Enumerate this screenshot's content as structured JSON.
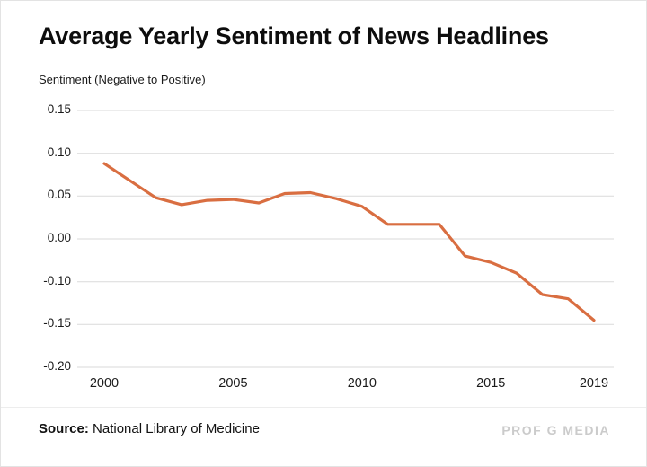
{
  "page": {
    "title": "Average Yearly Sentiment of News Headlines",
    "source_label": "Source:",
    "source_text": " National Library of Medicine",
    "brand": "PROF G MEDIA"
  },
  "chart_data": {
    "type": "line",
    "title": "Average Yearly Sentiment of News Headlines",
    "xlabel": "",
    "ylabel": "Sentiment (Negative to Positive)",
    "grid": true,
    "legend": "none",
    "line_color": "#D96E41",
    "x": [
      2000,
      2001,
      2002,
      2003,
      2004,
      2005,
      2006,
      2007,
      2008,
      2009,
      2010,
      2011,
      2012,
      2013,
      2014,
      2015,
      2016,
      2017,
      2018,
      2019
    ],
    "values": [
      0.088,
      0.068,
      0.048,
      0.04,
      0.045,
      0.046,
      0.042,
      0.053,
      0.054,
      0.047,
      0.038,
      0.017,
      0.017,
      0.017,
      -0.04,
      -0.055,
      -0.08,
      -0.115,
      -0.12,
      -0.145
    ],
    "y_ticks": [
      "0.15",
      "0.10",
      "0.05",
      "0.00",
      "-0.10",
      "-0.15",
      "-0.20"
    ],
    "y_tick_values": [
      0.15,
      0.1,
      0.05,
      0.0,
      -0.1,
      -0.15,
      -0.2
    ],
    "x_ticks": [
      "2000",
      "2005",
      "2010",
      "2015",
      "2019"
    ],
    "x_tick_values": [
      2000,
      2005,
      2010,
      2015,
      2019
    ]
  }
}
